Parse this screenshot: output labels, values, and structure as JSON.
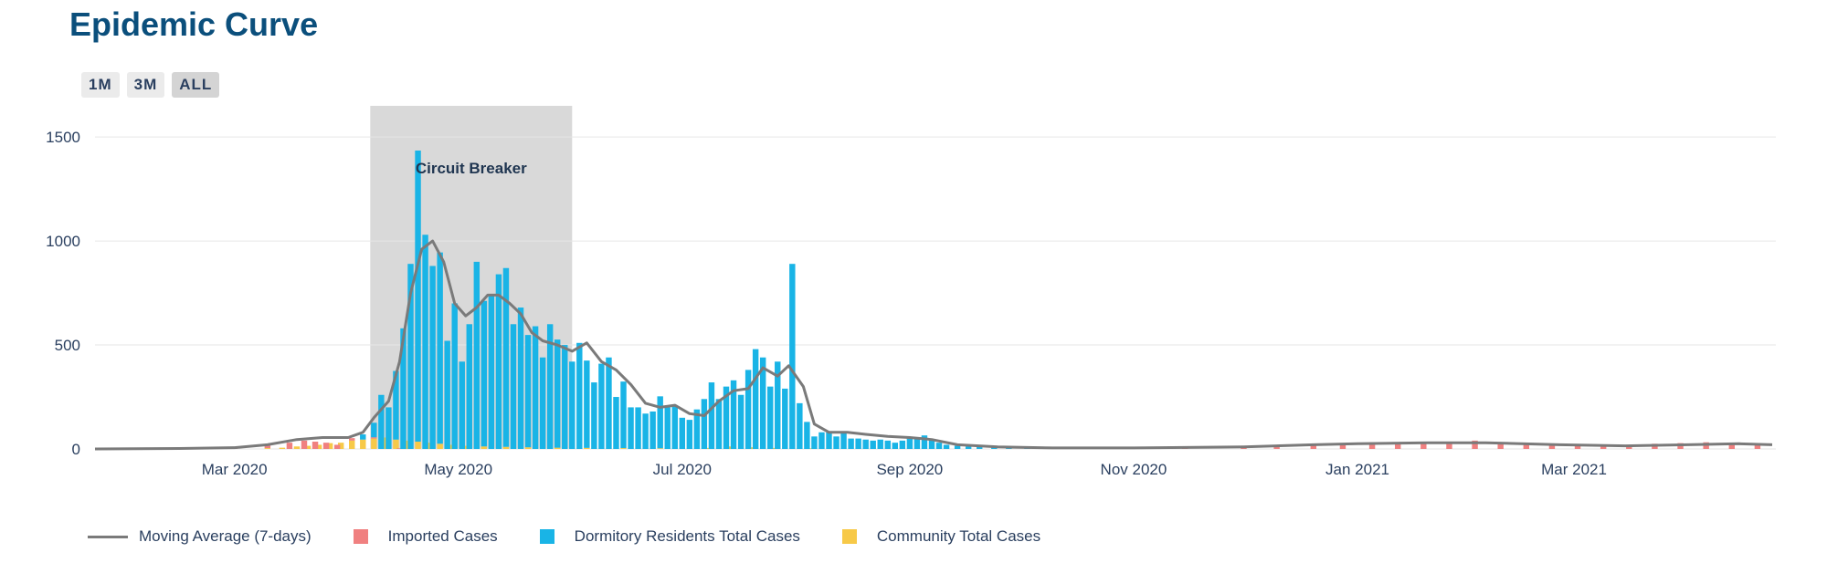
{
  "title": "Epidemic Curve",
  "range_buttons": [
    "1M",
    "3M",
    "ALL"
  ],
  "active_range": "ALL",
  "annotation": {
    "label": "Circuit Breaker",
    "start": "2020-04-07",
    "end": "2020-06-01"
  },
  "legend": {
    "moving_average": "Moving Average (7-days)",
    "imported": "Imported Cases",
    "dormitory": "Dormitory Residents Total Cases",
    "community": "Community Total Cases"
  },
  "colors": {
    "title": "#0b4f7c",
    "moving_average": "#7a7a7a",
    "imported": "#f08080",
    "dormitory": "#19b4e6",
    "community": "#f7c948",
    "shade": "#d9d9d9",
    "grid": "#e6e6e6"
  },
  "chart_data": {
    "type": "bar",
    "stacked": true,
    "x_axis": {
      "type": "date",
      "range": [
        "2020-01-23",
        "2021-04-25"
      ],
      "ticks": [
        {
          "date": "2020-03-01",
          "label": "Mar 2020"
        },
        {
          "date": "2020-05-01",
          "label": "May 2020"
        },
        {
          "date": "2020-07-01",
          "label": "Jul 2020"
        },
        {
          "date": "2020-09-01",
          "label": "Sep 2020"
        },
        {
          "date": "2020-11-01",
          "label": "Nov 2020"
        },
        {
          "date": "2021-01-01",
          "label": "Jan 2021"
        },
        {
          "date": "2021-03-01",
          "label": "Mar 2021"
        }
      ]
    },
    "y_axis": {
      "range": [
        0,
        1650
      ],
      "ticks": [
        0,
        500,
        1000,
        1500
      ],
      "grid": true
    },
    "legend_position": "bottom",
    "series": [
      {
        "name": "Dormitory Residents Total Cases",
        "key": "dormitory",
        "points": [
          [
            "2020-04-05",
            25
          ],
          [
            "2020-04-08",
            70
          ],
          [
            "2020-04-10",
            260
          ],
          [
            "2020-04-12",
            200
          ],
          [
            "2020-04-14",
            330
          ],
          [
            "2020-04-16",
            580
          ],
          [
            "2020-04-18",
            890
          ],
          [
            "2020-04-20",
            1400
          ],
          [
            "2020-04-22",
            1030
          ],
          [
            "2020-04-24",
            880
          ],
          [
            "2020-04-26",
            920
          ],
          [
            "2020-04-28",
            520
          ],
          [
            "2020-04-30",
            700
          ],
          [
            "2020-05-02",
            420
          ],
          [
            "2020-05-04",
            600
          ],
          [
            "2020-05-06",
            900
          ],
          [
            "2020-05-08",
            700
          ],
          [
            "2020-05-10",
            740
          ],
          [
            "2020-05-12",
            840
          ],
          [
            "2020-05-14",
            860
          ],
          [
            "2020-05-16",
            600
          ],
          [
            "2020-05-18",
            680
          ],
          [
            "2020-05-20",
            540
          ],
          [
            "2020-05-22",
            590
          ],
          [
            "2020-05-24",
            440
          ],
          [
            "2020-05-26",
            600
          ],
          [
            "2020-05-28",
            520
          ],
          [
            "2020-05-30",
            500
          ],
          [
            "2020-06-01",
            420
          ],
          [
            "2020-06-03",
            510
          ],
          [
            "2020-06-05",
            420
          ],
          [
            "2020-06-07",
            320
          ],
          [
            "2020-06-09",
            410
          ],
          [
            "2020-06-11",
            440
          ],
          [
            "2020-06-13",
            250
          ],
          [
            "2020-06-15",
            320
          ],
          [
            "2020-06-17",
            200
          ],
          [
            "2020-06-19",
            200
          ],
          [
            "2020-06-21",
            170
          ],
          [
            "2020-06-23",
            180
          ],
          [
            "2020-06-25",
            250
          ],
          [
            "2020-06-27",
            200
          ],
          [
            "2020-06-29",
            210
          ],
          [
            "2020-07-01",
            150
          ],
          [
            "2020-07-03",
            140
          ],
          [
            "2020-07-05",
            190
          ],
          [
            "2020-07-07",
            240
          ],
          [
            "2020-07-09",
            320
          ],
          [
            "2020-07-11",
            240
          ],
          [
            "2020-07-13",
            300
          ],
          [
            "2020-07-15",
            330
          ],
          [
            "2020-07-17",
            260
          ],
          [
            "2020-07-19",
            380
          ],
          [
            "2020-07-21",
            480
          ],
          [
            "2020-07-23",
            440
          ],
          [
            "2020-07-25",
            300
          ],
          [
            "2020-07-27",
            420
          ],
          [
            "2020-07-29",
            290
          ],
          [
            "2020-07-31",
            890
          ],
          [
            "2020-08-02",
            220
          ],
          [
            "2020-08-04",
            130
          ],
          [
            "2020-08-06",
            60
          ],
          [
            "2020-08-08",
            80
          ],
          [
            "2020-08-10",
            80
          ],
          [
            "2020-08-12",
            60
          ],
          [
            "2020-08-14",
            80
          ],
          [
            "2020-08-16",
            50
          ],
          [
            "2020-08-18",
            50
          ],
          [
            "2020-08-20",
            45
          ],
          [
            "2020-08-22",
            40
          ],
          [
            "2020-08-24",
            45
          ],
          [
            "2020-08-26",
            40
          ],
          [
            "2020-08-28",
            30
          ],
          [
            "2020-08-30",
            40
          ],
          [
            "2020-09-01",
            50
          ],
          [
            "2020-09-03",
            50
          ],
          [
            "2020-09-05",
            65
          ],
          [
            "2020-09-07",
            40
          ],
          [
            "2020-09-09",
            30
          ],
          [
            "2020-09-11",
            20
          ],
          [
            "2020-09-14",
            15
          ],
          [
            "2020-09-17",
            12
          ],
          [
            "2020-09-20",
            10
          ],
          [
            "2020-09-24",
            8
          ],
          [
            "2020-09-28",
            6
          ],
          [
            "2020-10-03",
            5
          ],
          [
            "2020-10-09",
            4
          ],
          [
            "2020-10-16",
            3
          ]
        ]
      },
      {
        "name": "Community Total Cases",
        "key": "community",
        "points": [
          [
            "2020-03-10",
            4
          ],
          [
            "2020-03-14",
            6
          ],
          [
            "2020-03-18",
            12
          ],
          [
            "2020-03-21",
            15
          ],
          [
            "2020-03-24",
            20
          ],
          [
            "2020-03-27",
            28
          ],
          [
            "2020-03-30",
            30
          ],
          [
            "2020-04-02",
            40
          ],
          [
            "2020-04-05",
            45
          ],
          [
            "2020-04-08",
            50
          ],
          [
            "2020-04-11",
            55
          ],
          [
            "2020-04-14",
            45
          ],
          [
            "2020-04-17",
            40
          ],
          [
            "2020-04-20",
            35
          ],
          [
            "2020-04-23",
            30
          ],
          [
            "2020-04-26",
            25
          ],
          [
            "2020-04-29",
            20
          ],
          [
            "2020-05-03",
            15
          ],
          [
            "2020-05-08",
            12
          ],
          [
            "2020-05-14",
            10
          ],
          [
            "2020-05-20",
            8
          ],
          [
            "2020-05-28",
            6
          ],
          [
            "2020-06-05",
            5
          ],
          [
            "2020-06-15",
            4
          ],
          [
            "2020-06-25",
            3
          ],
          [
            "2020-07-08",
            5
          ],
          [
            "2020-07-14",
            12
          ],
          [
            "2020-07-20",
            8
          ],
          [
            "2020-07-26",
            5
          ],
          [
            "2020-08-05",
            3
          ]
        ]
      },
      {
        "name": "Imported Cases",
        "key": "imported",
        "points": [
          [
            "2020-02-01",
            3
          ],
          [
            "2020-02-10",
            4
          ],
          [
            "2020-02-20",
            6
          ],
          [
            "2020-03-01",
            10
          ],
          [
            "2020-03-10",
            18
          ],
          [
            "2020-03-16",
            30
          ],
          [
            "2020-03-20",
            40
          ],
          [
            "2020-03-23",
            35
          ],
          [
            "2020-03-26",
            30
          ],
          [
            "2020-03-29",
            20
          ],
          [
            "2020-04-02",
            12
          ],
          [
            "2020-04-08",
            6
          ],
          [
            "2020-04-15",
            3
          ],
          [
            "2020-10-15",
            6
          ],
          [
            "2020-11-01",
            7
          ],
          [
            "2020-11-15",
            9
          ],
          [
            "2020-12-01",
            12
          ],
          [
            "2020-12-10",
            18
          ],
          [
            "2020-12-20",
            25
          ],
          [
            "2020-12-28",
            28
          ],
          [
            "2021-01-05",
            32
          ],
          [
            "2021-01-12",
            28
          ],
          [
            "2021-01-19",
            30
          ],
          [
            "2021-01-26",
            35
          ],
          [
            "2021-02-02",
            40
          ],
          [
            "2021-02-09",
            30
          ],
          [
            "2021-02-16",
            25
          ],
          [
            "2021-02-23",
            20
          ],
          [
            "2021-03-02",
            18
          ],
          [
            "2021-03-09",
            22
          ],
          [
            "2021-03-16",
            20
          ],
          [
            "2021-03-23",
            25
          ],
          [
            "2021-03-30",
            28
          ],
          [
            "2021-04-06",
            32
          ],
          [
            "2021-04-13",
            30
          ],
          [
            "2021-04-20",
            28
          ]
        ]
      },
      {
        "name": "Moving Average (7-days)",
        "key": "moving_average",
        "line": true,
        "points": [
          [
            "2020-01-23",
            0
          ],
          [
            "2020-02-15",
            2
          ],
          [
            "2020-03-01",
            6
          ],
          [
            "2020-03-10",
            20
          ],
          [
            "2020-03-18",
            45
          ],
          [
            "2020-03-25",
            55
          ],
          [
            "2020-04-01",
            55
          ],
          [
            "2020-04-05",
            80
          ],
          [
            "2020-04-08",
            150
          ],
          [
            "2020-04-12",
            230
          ],
          [
            "2020-04-15",
            420
          ],
          [
            "2020-04-18",
            750
          ],
          [
            "2020-04-21",
            960
          ],
          [
            "2020-04-24",
            1000
          ],
          [
            "2020-04-27",
            900
          ],
          [
            "2020-04-30",
            700
          ],
          [
            "2020-05-03",
            640
          ],
          [
            "2020-05-06",
            680
          ],
          [
            "2020-05-09",
            740
          ],
          [
            "2020-05-12",
            740
          ],
          [
            "2020-05-15",
            700
          ],
          [
            "2020-05-18",
            650
          ],
          [
            "2020-05-21",
            560
          ],
          [
            "2020-05-24",
            520
          ],
          [
            "2020-05-28",
            500
          ],
          [
            "2020-06-01",
            470
          ],
          [
            "2020-06-05",
            510
          ],
          [
            "2020-06-09",
            420
          ],
          [
            "2020-06-13",
            380
          ],
          [
            "2020-06-17",
            310
          ],
          [
            "2020-06-21",
            220
          ],
          [
            "2020-06-25",
            200
          ],
          [
            "2020-06-29",
            210
          ],
          [
            "2020-07-03",
            170
          ],
          [
            "2020-07-07",
            160
          ],
          [
            "2020-07-11",
            230
          ],
          [
            "2020-07-15",
            280
          ],
          [
            "2020-07-19",
            290
          ],
          [
            "2020-07-23",
            390
          ],
          [
            "2020-07-27",
            350
          ],
          [
            "2020-07-30",
            400
          ],
          [
            "2020-08-03",
            300
          ],
          [
            "2020-08-06",
            120
          ],
          [
            "2020-08-10",
            80
          ],
          [
            "2020-08-15",
            80
          ],
          [
            "2020-08-20",
            70
          ],
          [
            "2020-08-26",
            60
          ],
          [
            "2020-09-01",
            55
          ],
          [
            "2020-09-07",
            45
          ],
          [
            "2020-09-14",
            20
          ],
          [
            "2020-09-25",
            10
          ],
          [
            "2020-10-10",
            5
          ],
          [
            "2020-11-01",
            5
          ],
          [
            "2020-12-01",
            10
          ],
          [
            "2020-12-20",
            20
          ],
          [
            "2021-01-01",
            25
          ],
          [
            "2021-01-20",
            30
          ],
          [
            "2021-02-05",
            30
          ],
          [
            "2021-02-25",
            20
          ],
          [
            "2021-03-15",
            15
          ],
          [
            "2021-04-01",
            20
          ],
          [
            "2021-04-15",
            25
          ],
          [
            "2021-04-24",
            20
          ]
        ]
      }
    ]
  }
}
